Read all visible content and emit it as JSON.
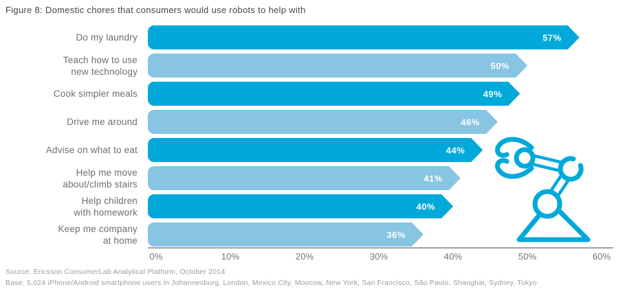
{
  "figure": {
    "title": "Figure 8: Domestic chores that consumers would use robots to help with"
  },
  "chart_data": {
    "type": "bar",
    "orientation": "horizontal",
    "title": "Figure 8: Domestic chores that consumers would use robots to help with",
    "categories": [
      "Do my laundry",
      "Teach how to use\nnew technology",
      "Cook simpler meals",
      "Drive me around",
      "Advise on what to eat",
      "Help me move\nabout/climb stairs",
      "Help children\nwith homework",
      "Keep me company\nat home"
    ],
    "values": [
      57,
      50,
      49,
      46,
      44,
      41,
      40,
      36
    ],
    "unit": "%",
    "xlabel": "",
    "ylabel": "",
    "xlim": [
      0,
      60
    ],
    "x_ticks": [
      "0%",
      "10%",
      "20%",
      "30%",
      "40%",
      "50%",
      "60%"
    ],
    "x_tick_values": [
      0,
      10,
      20,
      30,
      40,
      50,
      60
    ],
    "grid": "off",
    "legend": "none",
    "value_labels": "inside-end, white",
    "bar_colors": {
      "dark": "#00a9d9",
      "light": "#87c5e2"
    },
    "bar_color_pattern": "alternating dark/light starting dark"
  },
  "decoration": {
    "icon": "robot-arm-icon",
    "icon_color": "#00a9d9"
  },
  "footer": {
    "source": "Source: Ericsson ConsumerLab Analytical Platform, October 2014",
    "base": "Base: 5,024 iPhone/Android smartphone users in Johannesburg, London, Mexico City, Moscow, New York, San Francisco, São Paulo, Shanghai, Sydney, Tokyo"
  }
}
